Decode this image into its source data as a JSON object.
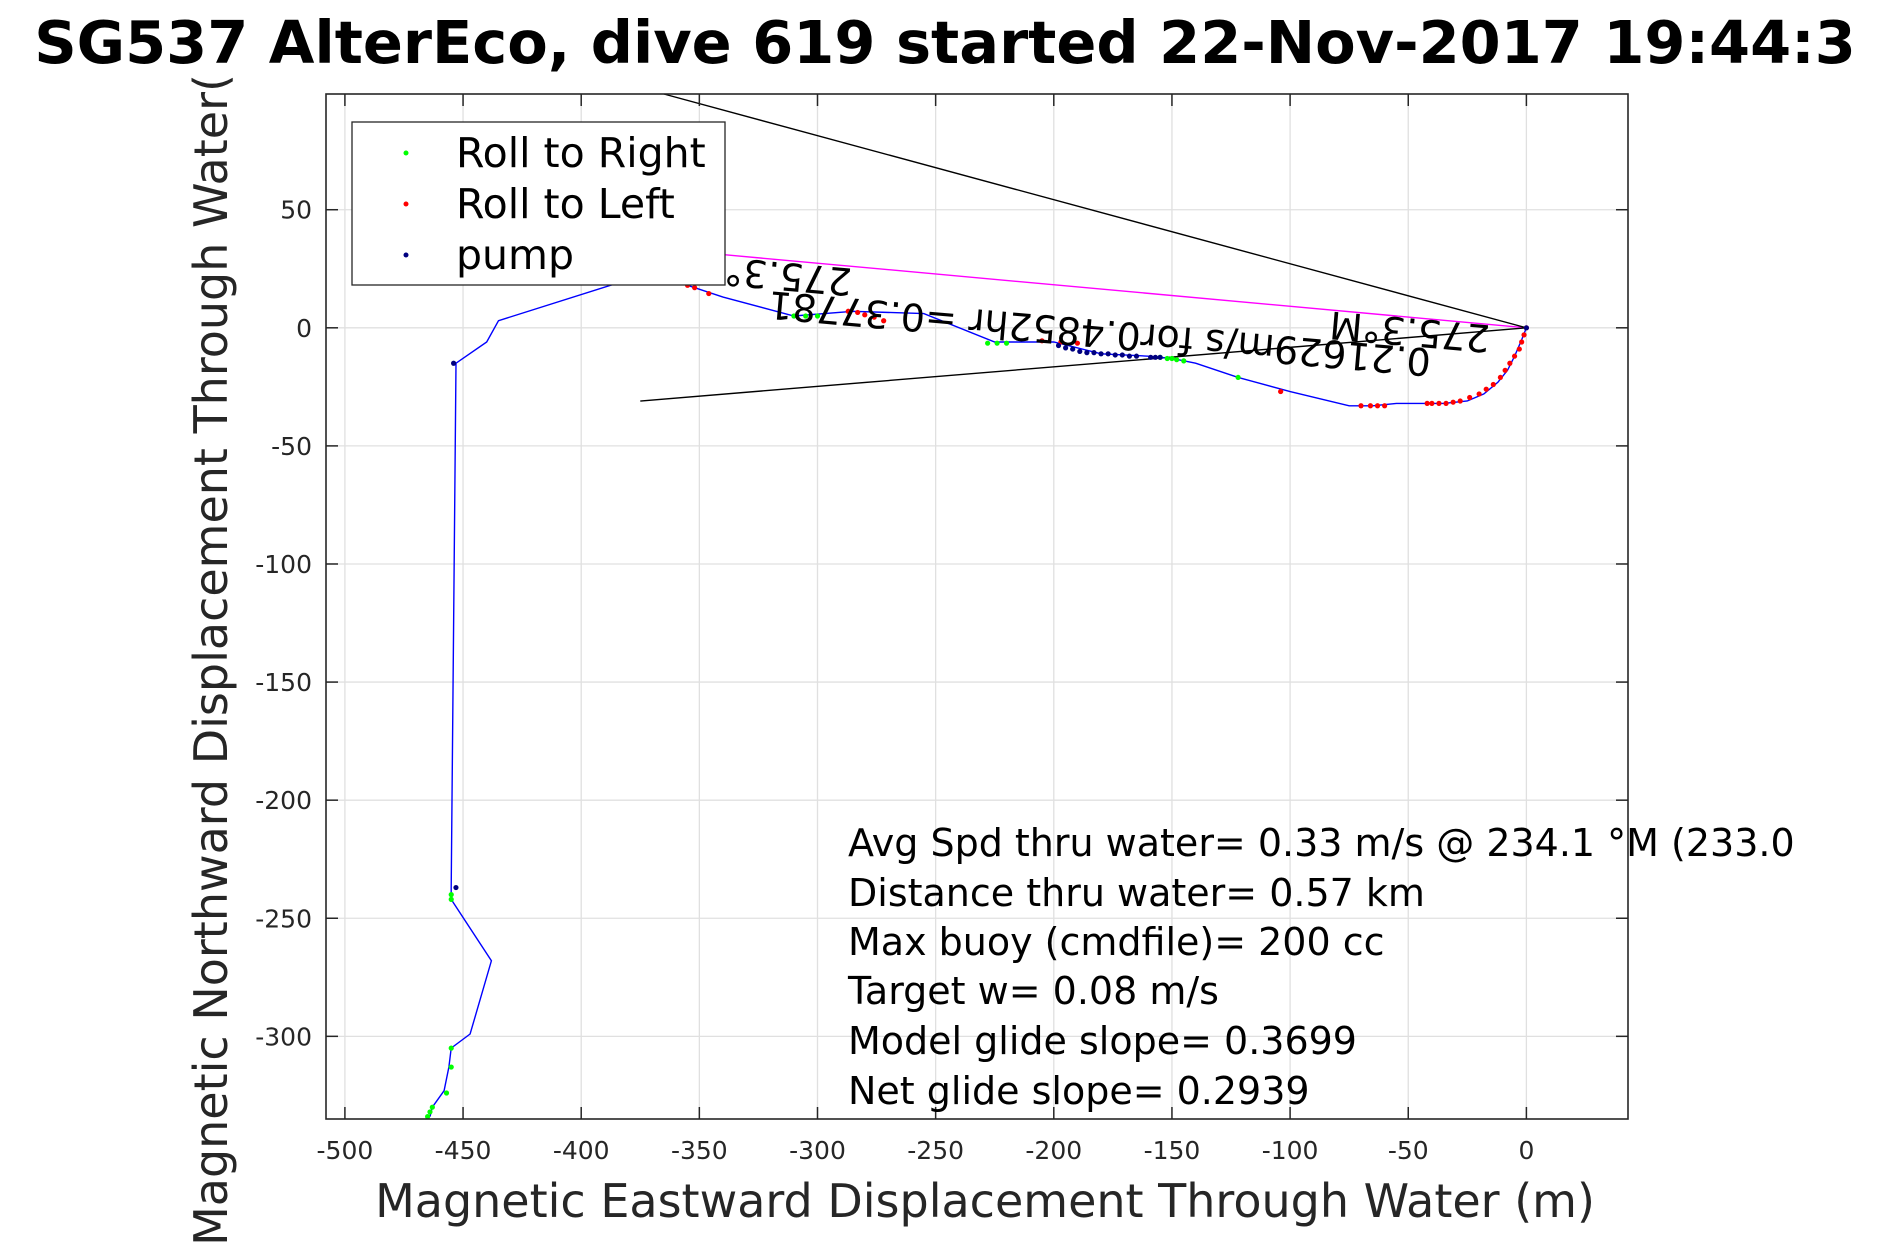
{
  "chart_data": {
    "type": "scatter",
    "title": "SG537 AlterEco, dive 619 started 22-Nov-2017 19:44:3",
    "xlabel": "Magnetic Eastward Displacement Through Water (m)",
    "ylabel": "Magnetic Northward Displacement Through Water(",
    "xlim": [
      -508,
      43
    ],
    "ylim": [
      -335,
      99
    ],
    "xticks": [
      -500,
      -450,
      -400,
      -350,
      -300,
      -250,
      -200,
      -150,
      -100,
      -50,
      0
    ],
    "yticks": [
      50,
      0,
      -50,
      -100,
      -150,
      -200,
      -250,
      -300
    ],
    "xtick_labels": [
      "-500",
      "-450",
      "-400",
      "-350",
      "-300",
      "-250",
      "-200",
      "-150",
      "-100",
      "-50",
      "0"
    ],
    "ytick_labels": [
      "50",
      "0",
      "-50",
      "-100",
      "-150",
      "-200",
      "-250",
      "-300"
    ],
    "grid": true,
    "legend_position": "top-left",
    "colors": {
      "track": "#0000ff",
      "roll_right": "#00ff00",
      "roll_left": "#ff0000",
      "pump": "#000080",
      "current": "#ff00ff",
      "heading": "#000000"
    },
    "track": {
      "name": "",
      "x": [
        0,
        -2,
        -5,
        -8,
        -12,
        -18,
        -25,
        -35,
        -40,
        -55,
        -65,
        -75,
        -100,
        -122,
        -140,
        -150,
        -160,
        -180,
        -200,
        -225,
        -255,
        -285,
        -310,
        -340,
        -355,
        -375,
        -435,
        -440,
        -453,
        -455,
        -455,
        -438,
        -447,
        -455,
        -456,
        -458,
        -463,
        -464
      ],
      "y": [
        0,
        -5,
        -12,
        -18,
        -23,
        -28,
        -31,
        -32,
        -32,
        -32,
        -33,
        -33,
        -27,
        -21,
        -15,
        -13,
        -12,
        -11,
        -6,
        -6,
        6,
        7,
        5,
        13,
        18,
        22,
        3,
        -6,
        -15,
        -237,
        -242,
        -268,
        -299,
        -305,
        -313,
        -323,
        -330,
        -334
      ]
    },
    "series": [
      {
        "name": "Roll to Right",
        "marker": "dot",
        "x": [
          -122,
          -145,
          -148,
          -150,
          -152,
          -155,
          -220,
          -224,
          -228,
          -300,
          -305,
          -310,
          -455,
          -455,
          -455,
          -455,
          -457,
          -463,
          -464,
          -465
        ],
        "y": [
          -21,
          -14,
          -13.5,
          -13,
          -13,
          -12.5,
          -6.5,
          -6.5,
          -6.5,
          5,
          5,
          5,
          -240,
          -242,
          -305,
          -313,
          -324,
          -330,
          -332,
          -334
        ]
      },
      {
        "name": "Roll to Left",
        "marker": "dot",
        "x": [
          0,
          -1,
          -2,
          -3,
          -5,
          -7,
          -9,
          -11,
          -14,
          -17,
          -20,
          -24,
          -28,
          -31,
          -34,
          -37,
          -40,
          -42,
          -60,
          -63,
          -66,
          -70,
          -104,
          -190,
          -197,
          -205,
          -272,
          -276,
          -280,
          -283,
          -287,
          -346,
          -352,
          -355
        ],
        "y": [
          0,
          -3,
          -6,
          -9,
          -12,
          -15,
          -18,
          -21,
          -24,
          -26,
          -28,
          -29.5,
          -31,
          -31.5,
          -32,
          -32,
          -32,
          -32,
          -33,
          -33,
          -33,
          -33,
          -27,
          -6.5,
          -6,
          -5.5,
          3,
          4.5,
          5.5,
          6.5,
          7,
          14.5,
          17,
          18
        ]
      },
      {
        "name": "pump",
        "marker": "dot",
        "x": [
          0,
          -155,
          -157,
          -159,
          -165,
          -168,
          -171,
          -174,
          -177,
          -180,
          -183,
          -186,
          -189,
          -192,
          -195,
          -198,
          -454,
          -453
        ],
        "y": [
          0,
          -12.5,
          -12.5,
          -12.5,
          -12,
          -12,
          -11.5,
          -11.5,
          -11,
          -11,
          -10.5,
          -10.5,
          -10,
          -9,
          -8.5,
          -7.5,
          -15,
          -237
        ]
      }
    ],
    "lines": [
      {
        "name": "",
        "color": "magenta",
        "x": [
          0,
          -340
        ],
        "y": [
          0,
          31
        ]
      },
      {
        "name": "",
        "color": "black",
        "x": [
          0,
          -375
        ],
        "y": [
          0,
          -31
        ]
      },
      {
        "name": "",
        "color": "black",
        "x": [
          0,
          -365
        ],
        "y": [
          0,
          99
        ]
      }
    ],
    "rotated_labels": [
      {
        "text": "275.3°M",
        "x": -15,
        "y": 1,
        "angle": 185
      },
      {
        "text": "0.21629m/s for0.4852hr =0.37781",
        "x": -40,
        "y": -9,
        "angle": 185
      },
      {
        "text": "275.3°",
        "x": -285,
        "y": 25,
        "angle": 185
      }
    ],
    "annotations": [
      "Avg Spd thru water=  0.33 m/s @ 234.1 °M (233.0",
      "Distance thru water=  0.57 km",
      "Max buoy (cmdfile)= 200 cc",
      "Target w= 0.08 m/s",
      "Model glide slope= 0.3699",
      "Net glide slope= 0.2939"
    ]
  }
}
